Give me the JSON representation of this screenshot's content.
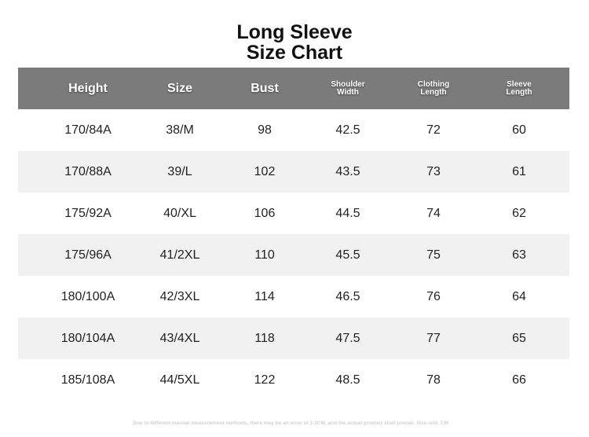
{
  "title": {
    "line1": "Long Sleeve",
    "line2": "Size Chart"
  },
  "table": {
    "header": [
      "Height",
      "Size",
      "Bust",
      "Shoulder Width",
      "Clothing Length",
      "Sleeve Length"
    ],
    "rows": [
      [
        "170/84A",
        "38/M",
        98,
        42.5,
        72,
        60
      ],
      [
        "170/88A",
        "39/L",
        102,
        43.5,
        73,
        61
      ],
      [
        "175/92A",
        "40/XL",
        106,
        44.5,
        74,
        62
      ],
      [
        "175/96A",
        "41/2XL",
        110,
        45.5,
        75,
        63
      ],
      [
        "180/100A",
        "42/3XL",
        114,
        46.5,
        76,
        64
      ],
      [
        "180/104A",
        "43/4XL",
        118,
        47.5,
        77,
        65
      ],
      [
        "185/108A",
        "44/5XL",
        122,
        48.5,
        78,
        66
      ]
    ]
  },
  "note": "Due to different manual measurement methods, there may be an error of 1-3CM, and the actual product shall prevail. Size unit: CM"
}
